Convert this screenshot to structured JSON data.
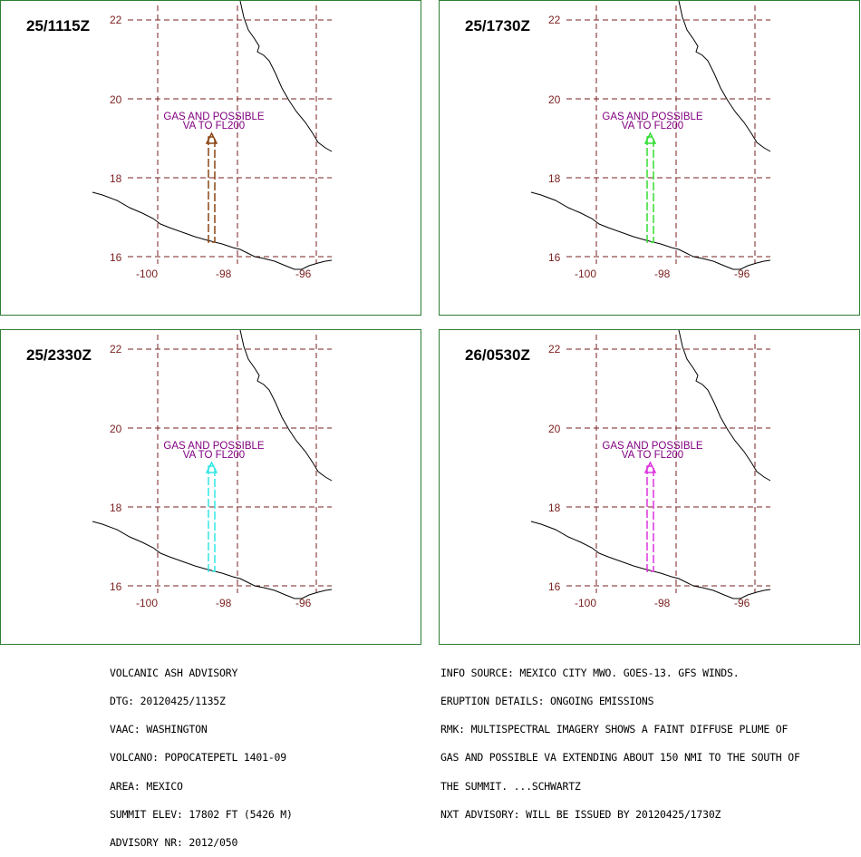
{
  "map": {
    "lat_ticks": [
      "22",
      "20",
      "18",
      "16"
    ],
    "lon_ticks": [
      "-100",
      "-98",
      "-96"
    ],
    "annotation_line1": "GAS AND POSSIBLE",
    "annotation_line2": "VA  TO FL200",
    "grid_color": "#7a1f1f",
    "annotation_color": "#800080",
    "coast_color": "#000000"
  },
  "panels": [
    {
      "time": "25/1115Z",
      "plume_color": "#8b4513"
    },
    {
      "time": "25/1730Z",
      "plume_color": "#33dd33"
    },
    {
      "time": "25/2330Z",
      "plume_color": "#33e5e5"
    },
    {
      "time": "26/0530Z",
      "plume_color": "#dd33dd"
    }
  ],
  "advisory": {
    "left_lines": [
      "VOLCANIC ASH ADVISORY",
      "DTG: 20120425/1135Z",
      "VAAC: WASHINGTON",
      "VOLCANO: POPOCATEPETL 1401-09",
      "AREA: MEXICO",
      "SUMMIT ELEV: 17802 FT (5426 M)",
      "ADVISORY NR: 2012/050"
    ],
    "right_lines": [
      "INFO SOURCE: MEXICO CITY MWO. GOES-13. GFS WINDS.",
      "ERUPTION DETAILS: ONGOING EMISSIONS",
      "RMK: MULTISPECTRAL IMAGERY SHOWS A FAINT DIFFUSE PLUME OF",
      "GAS AND POSSIBLE VA EXTENDING ABOUT 150 NMI TO THE SOUTH OF",
      "THE SUMMIT. ...SCHWARTZ",
      "NXT ADVISORY: WILL BE ISSUED BY 20120425/1730Z"
    ]
  }
}
